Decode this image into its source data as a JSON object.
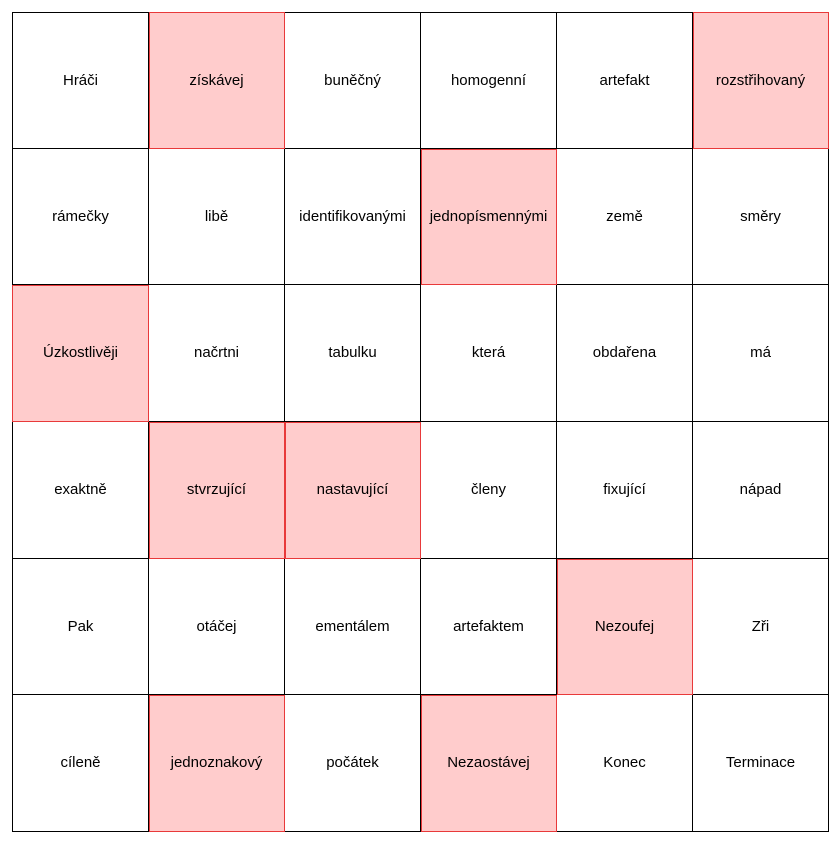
{
  "colors": {
    "highlight_fill": "#ffcccc",
    "highlight_border": "#e8393a",
    "grid_line": "#000000",
    "cell_fill": "#ffffff"
  },
  "grid": {
    "rows": [
      [
        {
          "text": "Hráči",
          "highlighted": false
        },
        {
          "text": "získávej",
          "highlighted": true
        },
        {
          "text": "buněčný",
          "highlighted": false
        },
        {
          "text": "homogenní",
          "highlighted": false
        },
        {
          "text": "artefakt",
          "highlighted": false
        },
        {
          "text": "rozstřihovaný",
          "highlighted": true
        }
      ],
      [
        {
          "text": "rámečky",
          "highlighted": false
        },
        {
          "text": "libě",
          "highlighted": false
        },
        {
          "text": "identifikovanými",
          "highlighted": false
        },
        {
          "text": "jednopísmennými",
          "highlighted": true
        },
        {
          "text": "země",
          "highlighted": false
        },
        {
          "text": "směry",
          "highlighted": false
        }
      ],
      [
        {
          "text": "Úzkostlivěji",
          "highlighted": true
        },
        {
          "text": "načrtni",
          "highlighted": false
        },
        {
          "text": "tabulku",
          "highlighted": false
        },
        {
          "text": "která",
          "highlighted": false
        },
        {
          "text": "obdařena",
          "highlighted": false
        },
        {
          "text": "má",
          "highlighted": false
        }
      ],
      [
        {
          "text": "exaktně",
          "highlighted": false
        },
        {
          "text": "stvrzující",
          "highlighted": true
        },
        {
          "text": "nastavující",
          "highlighted": true
        },
        {
          "text": "členy",
          "highlighted": false
        },
        {
          "text": "fixující",
          "highlighted": false
        },
        {
          "text": "nápad",
          "highlighted": false
        }
      ],
      [
        {
          "text": "Pak",
          "highlighted": false
        },
        {
          "text": "otáčej",
          "highlighted": false
        },
        {
          "text": "ementálem",
          "highlighted": false
        },
        {
          "text": "artefaktem",
          "highlighted": false
        },
        {
          "text": "Nezoufej",
          "highlighted": true
        },
        {
          "text": "Zři",
          "highlighted": false
        }
      ],
      [
        {
          "text": "cíleně",
          "highlighted": false
        },
        {
          "text": "jednoznakový",
          "highlighted": true
        },
        {
          "text": "počátek",
          "highlighted": false
        },
        {
          "text": "Nezaostávej",
          "highlighted": true
        },
        {
          "text": "Konec",
          "highlighted": false
        },
        {
          "text": "Terminace",
          "highlighted": false
        }
      ]
    ]
  }
}
